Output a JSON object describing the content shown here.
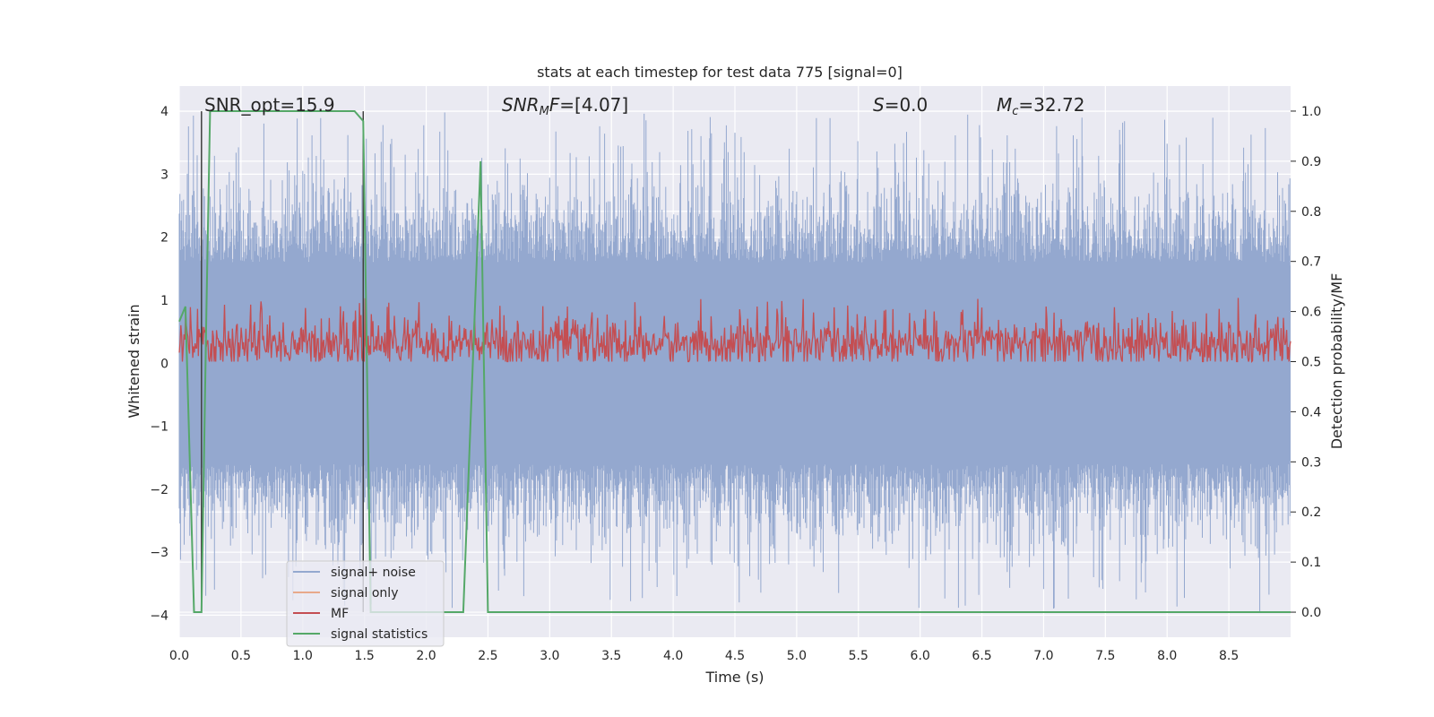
{
  "chart_data": {
    "type": "line",
    "title": "stats at each timestep for test data 775 [signal=0]",
    "xlabel": "Time (s)",
    "ylabel": "Whitened strain",
    "y2label": "Detection probability/MF",
    "xlim": [
      0.0,
      9.0
    ],
    "ylim": [
      -4.35,
      4.4
    ],
    "y2lim": [
      -0.05,
      1.05
    ],
    "x_ticks": [
      "0.0",
      "0.5",
      "1.0",
      "1.5",
      "2.0",
      "2.5",
      "3.0",
      "3.5",
      "4.0",
      "4.5",
      "5.0",
      "5.5",
      "6.0",
      "6.5",
      "7.0",
      "7.5",
      "8.0",
      "8.5"
    ],
    "y_ticks": [
      "−4",
      "−3",
      "−2",
      "−1",
      "0",
      "1",
      "2",
      "3",
      "4"
    ],
    "y2_ticks": [
      "0.0",
      "0.1",
      "0.2",
      "0.3",
      "0.4",
      "0.5",
      "0.6",
      "0.7",
      "0.8",
      "0.9",
      "1.0"
    ],
    "grid": true,
    "legend_position": "lower-left",
    "annotations": {
      "snr_opt": "SNR_opt=15.9",
      "snr_mf_var": "SNR",
      "snr_mf_sub": "M",
      "snr_mf_var2": "F",
      "snr_mf_val": "=[4.07]",
      "s_var": "S",
      "s_val": "=0.0",
      "mc_var": "M",
      "mc_sub": "c",
      "mc_val": "=32.72"
    },
    "vertical_lines_x": [
      0.18,
      1.49
    ],
    "series": [
      {
        "name": "signal+ noise",
        "color": "#94a8cf",
        "axis": "left",
        "note": "whitened noise, approx. amplitude within [-3.95, 4.0], dense fill",
        "amplitude_range": [
          -3.95,
          4.0
        ]
      },
      {
        "name": "signal only",
        "color": "#e8a98a",
        "axis": "left",
        "values": [
          0,
          0
        ]
      },
      {
        "name": "MF",
        "color": "#c44e52",
        "axis": "right",
        "note": "matched filter output oscillating around 0.53 on right axis",
        "range": [
          0.5,
          0.63
        ]
      },
      {
        "name": "signal statistics",
        "color": "#55a868",
        "axis": "right",
        "x": [
          0.0,
          0.05,
          0.08,
          0.12,
          0.18,
          0.22,
          0.25,
          1.42,
          1.49,
          1.55,
          2.3,
          2.44,
          2.5,
          9.0
        ],
        "y": [
          0.58,
          0.61,
          0.35,
          0.0,
          0.0,
          0.6,
          1.0,
          1.0,
          0.98,
          0.0,
          0.0,
          0.9,
          0.0,
          0.0
        ]
      }
    ]
  }
}
